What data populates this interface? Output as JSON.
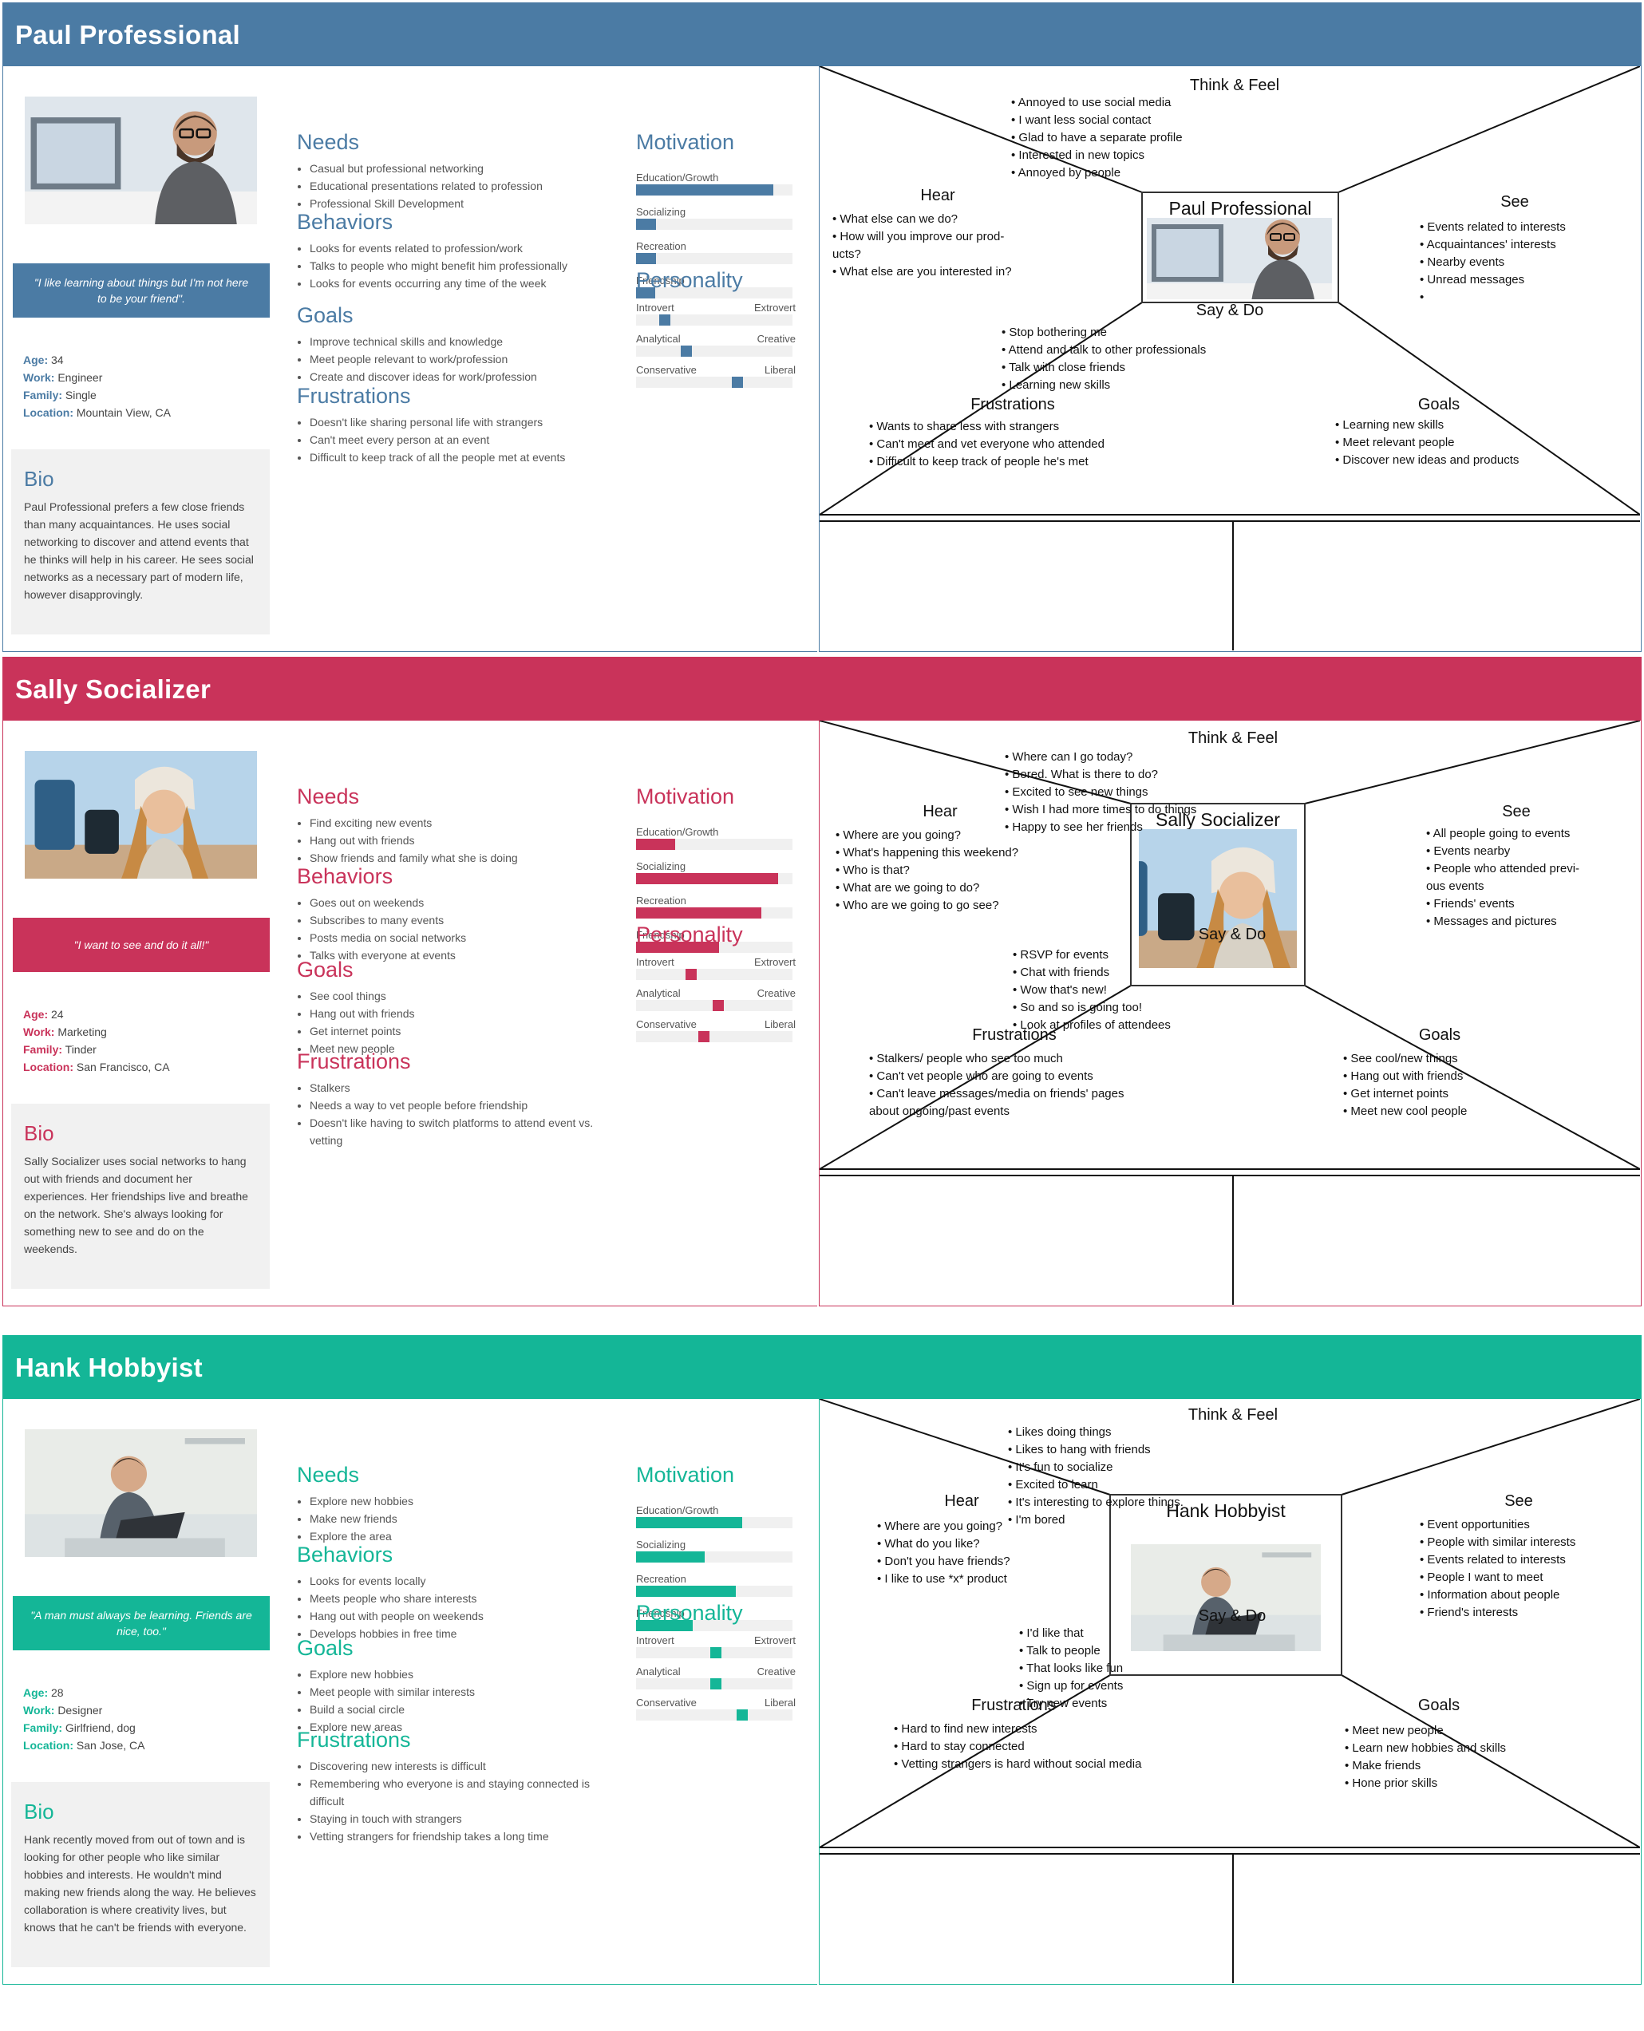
{
  "personas": [
    {
      "name": "Paul Professional",
      "color": "#4b7ba4",
      "quote": "\"I like learning about things but I'm not here to be your friend\".",
      "facts": {
        "age_label": "Age:",
        "age": "34",
        "work_label": "Work:",
        "work": "Engineer",
        "family_label": "Family:",
        "family": "Single",
        "location_label": "Location:",
        "location": "Mountain View, CA"
      },
      "bio_title": "Bio",
      "bio": "Paul Professional prefers a few close friends than many acquaintances. He uses social networking to discover and attend events that he thinks will help in his career. He sees social networks as a necessary part of modern life, however disapprovingly.",
      "needs": {
        "title": "Needs",
        "items": [
          "Casual but professional networking",
          "Educational presentations related to profession",
          "Professional Skill Development"
        ]
      },
      "behaviors": {
        "title": "Behaviors",
        "items": [
          "Looks for events related to profession/work",
          "Talks to people who might benefit him professionally",
          "Looks for events occurring any time of the week"
        ]
      },
      "goals": {
        "title": "Goals",
        "items": [
          "Improve technical skills and knowledge",
          "Meet people relevant to work/profession",
          "Create and discover ideas for work/profession"
        ]
      },
      "frustrations": {
        "title": "Frustrations",
        "items": [
          "Doesn't like sharing personal life with strangers",
          "Can't meet every person at an event",
          "Difficult to keep track of all the people met at events"
        ]
      },
      "motivation": {
        "title": "Motivation",
        "bars": [
          {
            "label": "Education/Growth",
            "value": 0.88
          },
          {
            "label": "Socializing",
            "value": 0.13
          },
          {
            "label": "Recreation",
            "value": 0.13
          },
          {
            "label": "Friendship",
            "value": 0.12
          }
        ]
      },
      "personality": {
        "title": "Personality",
        "scales": [
          {
            "left": "Introvert",
            "right": "Extrovert",
            "value": 0.16
          },
          {
            "left": "Analytical",
            "right": "Creative",
            "value": 0.31
          },
          {
            "left": "Conservative",
            "right": "Liberal",
            "value": 0.66
          }
        ]
      },
      "empathy": {
        "think_feel": {
          "title": "Think & Feel",
          "items": [
            "Annoyed to use social media",
            "I want less social contact",
            "Glad to have a separate profile",
            "Interested in new topics",
            "Annoyed by people"
          ]
        },
        "hear": {
          "title": "Hear",
          "items": [
            "What else can we do?",
            "How will you improve our prod-",
            "ucts?",
            "What else are you interested in?"
          ]
        },
        "see": {
          "title": "See",
          "items": [
            "Events related to interests",
            "Acquaintances' interests",
            "Nearby events",
            "Unread messages",
            ""
          ]
        },
        "say_do": {
          "title": "Say & Do",
          "items": [
            "Stop bothering me",
            "Attend and talk to other professionals",
            "Talk with close friends",
            "Learning new skills"
          ]
        },
        "frustrations": {
          "title": "Frustrations",
          "items": [
            "Wants to share less with strangers",
            "Can't meet and vet everyone who attended",
            "Difficult to keep track of people he's met"
          ]
        },
        "goals": {
          "title": "Goals",
          "items": [
            "Learning new skills",
            "Meet relevant people",
            "Discover new ideas and products"
          ]
        }
      }
    },
    {
      "name": "Sally Socializer",
      "color": "#c9335a",
      "quote": "\"I want to see and do it all!\"",
      "facts": {
        "age_label": "Age:",
        "age": "24",
        "work_label": "Work:",
        "work": "Marketing",
        "family_label": "Family:",
        "family": "Tinder",
        "location_label": "Location:",
        "location": "San Francisco, CA"
      },
      "bio_title": "Bio",
      "bio": "Sally Socializer uses social networks to hang out with friends and document her experiences. Her friendships live and breathe on the network. She's always looking for something new to see and do on the weekends.",
      "needs": {
        "title": "Needs",
        "items": [
          "Find exciting new events",
          "Hang out with friends",
          "Show friends and family what she is doing"
        ]
      },
      "behaviors": {
        "title": "Behaviors",
        "items": [
          "Goes out on weekends",
          "Subscribes to many events",
          "Posts media on social networks",
          "Talks with everyone at events"
        ]
      },
      "goals": {
        "title": "Goals",
        "items": [
          "See cool things",
          "Hang out with friends",
          "Get internet points",
          "Meet new people"
        ]
      },
      "frustrations": {
        "title": "Frustrations",
        "items": [
          "Stalkers",
          "Needs a way to vet people before friendship",
          "Doesn't like having to switch platforms to attend event vs. vetting"
        ]
      },
      "motivation": {
        "title": "Motivation",
        "bars": [
          {
            "label": "Education/Growth",
            "value": 0.25
          },
          {
            "label": "Socializing",
            "value": 0.91
          },
          {
            "label": "Recreation",
            "value": 0.8
          },
          {
            "label": "Friendship",
            "value": 0.53
          }
        ]
      },
      "personality": {
        "title": "Personality",
        "scales": [
          {
            "left": "Introvert",
            "right": "Extrovert",
            "value": 0.34
          },
          {
            "left": "Analytical",
            "right": "Creative",
            "value": 0.53
          },
          {
            "left": "Conservative",
            "right": "Liberal",
            "value": 0.43
          }
        ]
      },
      "empathy": {
        "think_feel": {
          "title": "Think & Feel",
          "items": [
            "Where can I go today?",
            "Bored. What is there to do?",
            "Excited to see new things",
            "Wish I had more times to do things",
            "Happy to see her friends"
          ]
        },
        "hear": {
          "title": "Hear",
          "items": [
            "Where are you going?",
            "What's happening this weekend?",
            "Who is that?",
            "What are we going to do?",
            "Who are we going to go see?"
          ]
        },
        "see": {
          "title": "See",
          "items": [
            "All people going to events",
            "Events nearby",
            "People who attended previ-",
            "ous events",
            "Friends' events",
            "Messages and pictures"
          ]
        },
        "say_do": {
          "title": "Say & Do",
          "items": [
            "RSVP for events",
            "Chat with friends",
            "Wow that's new!",
            "So and so is going too!",
            "Look at profiles of attendees"
          ]
        },
        "frustrations": {
          "title": "Frustrations",
          "items": [
            "Stalkers/ people who see too much",
            "Can't vet people who are going to events",
            "Can't leave messages/media on friends' pages",
            "about ongoing/past events"
          ]
        },
        "goals": {
          "title": "Goals",
          "items": [
            "See cool/new things",
            "Hang out with friends",
            "Get internet points",
            "Meet new cool people"
          ]
        }
      }
    },
    {
      "name": "Hank Hobbyist",
      "color": "#14b697",
      "quote": "\"A man must always be learning. Friends are nice, too.\"",
      "facts": {
        "age_label": "Age:",
        "age": "28",
        "work_label": "Work:",
        "work": "Designer",
        "family_label": "Family:",
        "family": "Girlfriend, dog",
        "location_label": "Location:",
        "location": "San Jose, CA"
      },
      "bio_title": "Bio",
      "bio": "Hank recently moved from out of town and is looking for other people who like similar hobbies and interests. He wouldn't mind making new friends along the way. He believes collaboration is where creativity lives, but knows that he can't be friends with everyone.",
      "needs": {
        "title": "Needs",
        "items": [
          "Explore new hobbies",
          "Make new friends",
          "Explore the area"
        ]
      },
      "behaviors": {
        "title": "Behaviors",
        "items": [
          "Looks for events locally",
          "Meets people who share interests",
          "Hang out with people on weekends",
          "Develops hobbies in free time"
        ]
      },
      "goals": {
        "title": "Goals",
        "items": [
          "Explore new hobbies",
          "Meet people with similar interests",
          "Build a social circle",
          "Explore new areas"
        ]
      },
      "frustrations": {
        "title": "Frustrations",
        "items": [
          "Discovering new interests is difficult",
          "Remembering who everyone is and staying connected is difficult",
          "Staying in touch with strangers",
          "Vetting strangers for friendship takes a long time"
        ]
      },
      "motivation": {
        "title": "Motivation",
        "bars": [
          {
            "label": "Education/Growth",
            "value": 0.68
          },
          {
            "label": "Socializing",
            "value": 0.44
          },
          {
            "label": "Recreation",
            "value": 0.64
          },
          {
            "label": "Friendship",
            "value": 0.36
          }
        ]
      },
      "personality": {
        "title": "Personality",
        "scales": [
          {
            "left": "Introvert",
            "right": "Extrovert",
            "value": 0.51
          },
          {
            "left": "Analytical",
            "right": "Creative",
            "value": 0.51
          },
          {
            "left": "Conservative",
            "right": "Liberal",
            "value": 0.69
          }
        ]
      },
      "empathy": {
        "think_feel": {
          "title": "Think & Feel",
          "items": [
            "Likes doing things",
            "Likes to hang with friends",
            "It's fun to socialize",
            "Excited to learn",
            "It's interesting to explore things.",
            "I'm bored"
          ]
        },
        "hear": {
          "title": "Hear",
          "items": [
            "Where are you going?",
            "What do you like?",
            "Don't you have friends?",
            "I like to use *x* product"
          ]
        },
        "see": {
          "title": "See",
          "items": [
            "Event opportunities",
            "People with similar interests",
            "Events related to interests",
            "People I want to meet",
            "Information about people",
            "Friend's interests"
          ]
        },
        "say_do": {
          "title": "Say & Do",
          "items": [
            "I'd like that",
            "Talk to people",
            "That looks like fun",
            "Sign up for events",
            "Try new events"
          ]
        },
        "frustrations": {
          "title": "Frustrations",
          "items": [
            "Hard to find new interests",
            "Hard to stay connected",
            "Vetting strangers is hard without social media"
          ]
        },
        "goals": {
          "title": "Goals",
          "items": [
            "Meet new people",
            "Learn new hobbies and skills",
            "Make friends",
            "Hone prior skills"
          ]
        }
      }
    }
  ]
}
